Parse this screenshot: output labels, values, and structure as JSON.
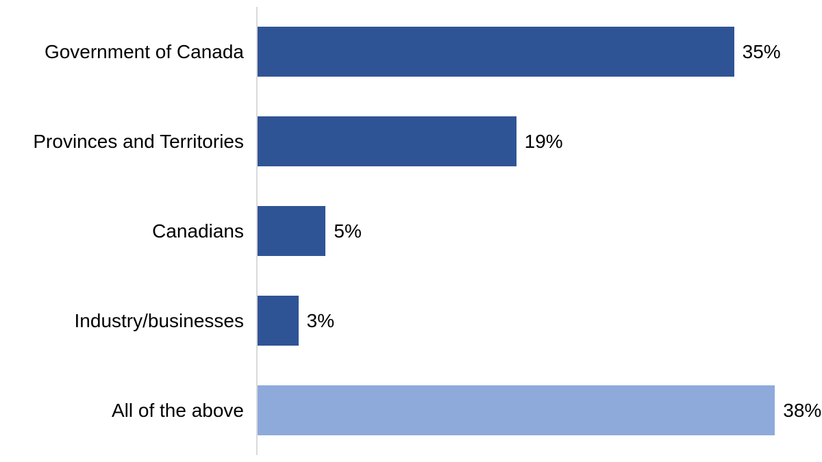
{
  "chart_data": {
    "type": "bar",
    "orientation": "horizontal",
    "title": "",
    "xlabel": "",
    "ylabel": "",
    "categories": [
      "Government of Canada",
      "Provinces and Territories",
      "Canadians",
      "Industry/businesses",
      "All of the above"
    ],
    "values": [
      35,
      19,
      5,
      3,
      38
    ],
    "value_labels": [
      "35%",
      "19%",
      "5%",
      "3%",
      "38%"
    ],
    "xlim": [
      0,
      40
    ],
    "grid": false,
    "legend": "none",
    "colors": {
      "bar_default": "#2F5496",
      "bar_highlight": "#8EAADB",
      "axis_line": "#D9D9D9",
      "label_text": "#000000"
    },
    "bar_colors": [
      "#2F5496",
      "#2F5496",
      "#2F5496",
      "#2F5496",
      "#8EAADB"
    ]
  }
}
